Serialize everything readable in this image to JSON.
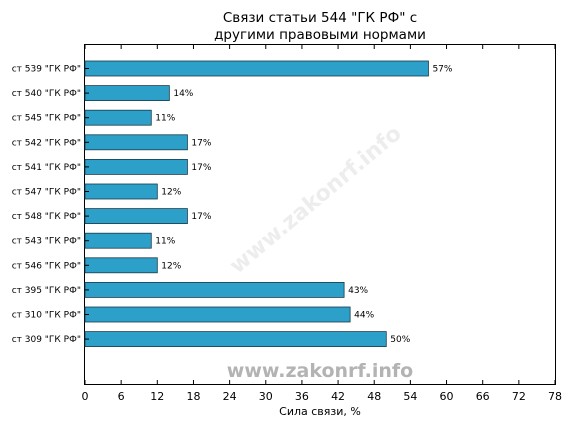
{
  "chart_data": {
    "type": "bar",
    "orientation": "horizontal",
    "title": [
      "Связи статьи 544 \"ГК РФ\" с",
      "другими правовыми нормами"
    ],
    "xlabel": "Сила связи, %",
    "ylabel": "",
    "xlim": [
      0,
      78
    ],
    "xticks": [
      0,
      6,
      12,
      18,
      24,
      30,
      36,
      42,
      48,
      54,
      60,
      66,
      72,
      78
    ],
    "grid": false,
    "bar_color": "#2ca0c8",
    "bar_edge_color": "#1a3a4a",
    "categories": [
      "ст 539 \"ГК РФ\"",
      "ст 540 \"ГК РФ\"",
      "ст 545 \"ГК РФ\"",
      "ст 542 \"ГК РФ\"",
      "ст 541 \"ГК РФ\"",
      "ст 547 \"ГК РФ\"",
      "ст 548 \"ГК РФ\"",
      "ст 543 \"ГК РФ\"",
      "ст 546 \"ГК РФ\"",
      "ст 395 \"ГК РФ\"",
      "ст 310 \"ГК РФ\"",
      "ст 309 \"ГК РФ\""
    ],
    "values": [
      57,
      14,
      11,
      17,
      17,
      12,
      17,
      11,
      12,
      43,
      44,
      50
    ],
    "value_labels": [
      "57%",
      "14%",
      "11%",
      "17%",
      "17%",
      "12%",
      "17%",
      "11%",
      "12%",
      "43%",
      "44%",
      "50%"
    ]
  },
  "watermark": "www.zakonrf.info"
}
